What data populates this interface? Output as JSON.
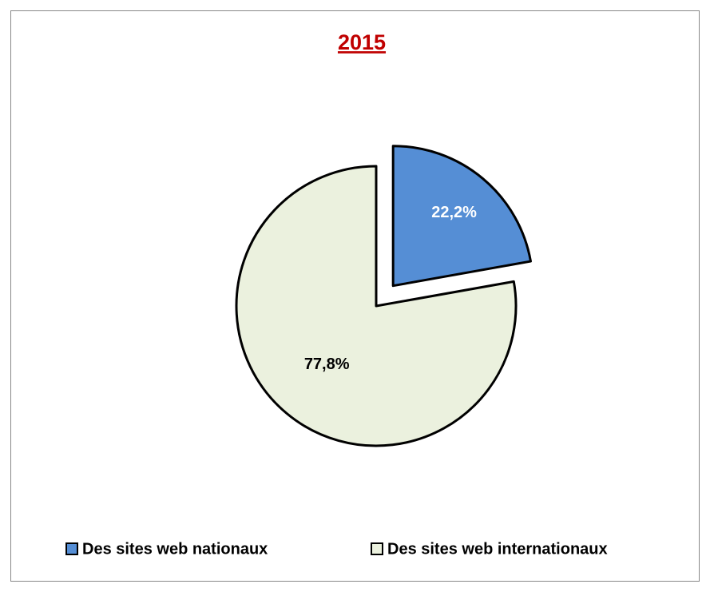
{
  "chart_data": {
    "type": "pie",
    "title": "2015",
    "categories": [
      "Des sites web nationaux",
      "Des sites web internationaux"
    ],
    "values": [
      22.2,
      77.8
    ],
    "value_labels": [
      "22,2%",
      "77,8%"
    ],
    "colors": [
      "#558ed5",
      "#ebf1de"
    ],
    "exploded": [
      true,
      false
    ],
    "legend": "bottom"
  }
}
